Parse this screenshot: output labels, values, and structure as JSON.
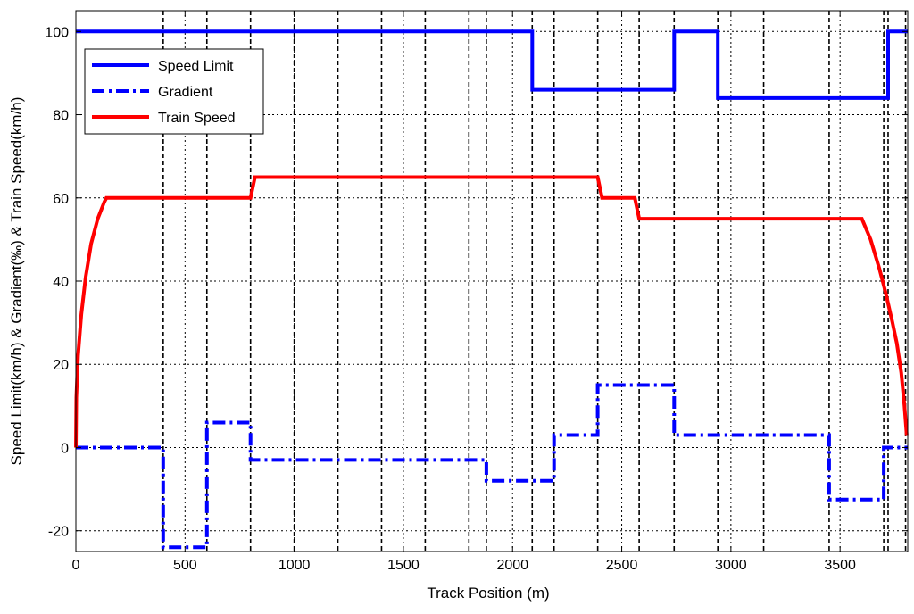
{
  "chart_data": {
    "type": "line",
    "xlabel": "Track Position (m)",
    "ylabel": "Speed Limit(km/h) & Gradient(‰) & Train Speed(km/h)",
    "xlim": [
      0,
      3810
    ],
    "ylim": [
      -25,
      105
    ],
    "xticks": [
      0,
      500,
      1000,
      1500,
      2000,
      2500,
      3000,
      3500
    ],
    "yticks": [
      -20,
      0,
      20,
      40,
      60,
      80,
      100
    ],
    "grid": true,
    "legend_position": "top-left",
    "boundary_markers_x": [
      400,
      600,
      800,
      1000,
      1200,
      1400,
      1600,
      1800,
      1880,
      2090,
      2190,
      2390,
      2580,
      2740,
      2940,
      3150,
      3450,
      3700,
      3720,
      3800
    ],
    "series": [
      {
        "name": "Speed Limit",
        "color": "#0000ff",
        "style": "solid",
        "x": [
          0,
          2090,
          2090,
          2740,
          2740,
          2940,
          2940,
          3720,
          3720,
          3810
        ],
        "y": [
          100,
          100,
          86,
          86,
          100,
          100,
          84,
          84,
          100,
          100
        ]
      },
      {
        "name": "Gradient",
        "color": "#0000ff",
        "style": "dashdot",
        "x": [
          0,
          400,
          400,
          600,
          600,
          800,
          800,
          1880,
          1880,
          2190,
          2190,
          2390,
          2390,
          2740,
          2740,
          3450,
          3450,
          3700,
          3700,
          3720,
          3810
        ],
        "y": [
          0,
          0,
          -24,
          -24,
          6,
          6,
          -3,
          -3,
          -8,
          -8,
          3,
          3,
          15,
          15,
          3,
          3,
          -12.5,
          -12.5,
          0,
          0,
          0
        ]
      },
      {
        "name": "Train Speed",
        "color": "#ff0000",
        "style": "solid",
        "x": [
          0,
          2,
          10,
          25,
          45,
          70,
          100,
          130,
          140,
          800,
          820,
          2390,
          2410,
          2560,
          2580,
          3600,
          3640,
          3680,
          3710,
          3740,
          3760,
          3780,
          3795,
          3805
        ],
        "y": [
          0,
          12,
          22,
          32,
          41,
          49,
          55,
          59,
          60,
          60,
          65,
          65,
          60,
          60,
          55,
          55,
          50,
          43,
          37,
          30,
          25,
          18,
          10,
          3
        ]
      }
    ]
  }
}
